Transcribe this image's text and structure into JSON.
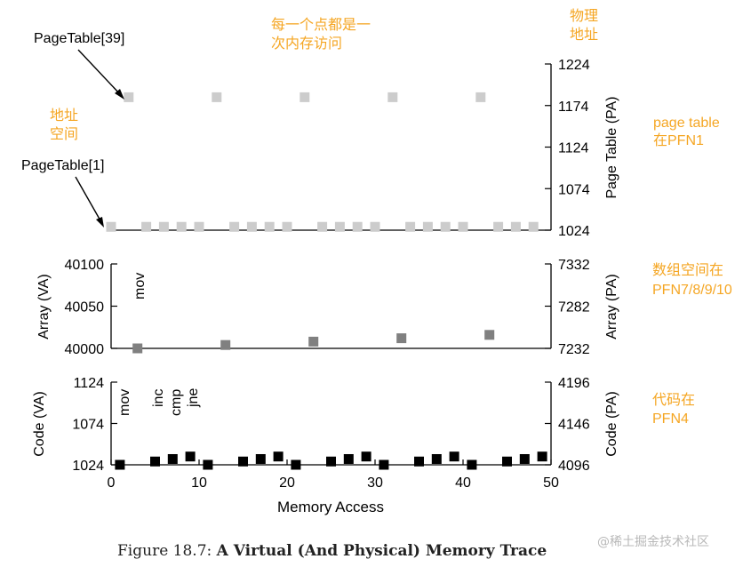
{
  "chart_data": [
    {
      "type": "scatter",
      "name": "page-table-panel",
      "xlim": [
        0,
        50
      ],
      "right_axis": {
        "label": "Page Table (PA)",
        "ylim": [
          1024,
          1224
        ],
        "ticks": [
          "1224",
          "1174",
          "1124",
          "1074",
          "1024"
        ]
      },
      "color": "#cccccc",
      "points": [
        {
          "x": 2,
          "y": 1184
        },
        {
          "x": 12,
          "y": 1184
        },
        {
          "x": 22,
          "y": 1184
        },
        {
          "x": 32,
          "y": 1184
        },
        {
          "x": 42,
          "y": 1184
        },
        {
          "x": 0,
          "y": 1028
        },
        {
          "x": 4,
          "y": 1028
        },
        {
          "x": 6,
          "y": 1028
        },
        {
          "x": 8,
          "y": 1028
        },
        {
          "x": 10,
          "y": 1028
        },
        {
          "x": 14,
          "y": 1028
        },
        {
          "x": 16,
          "y": 1028
        },
        {
          "x": 18,
          "y": 1028
        },
        {
          "x": 20,
          "y": 1028
        },
        {
          "x": 24,
          "y": 1028
        },
        {
          "x": 26,
          "y": 1028
        },
        {
          "x": 28,
          "y": 1028
        },
        {
          "x": 30,
          "y": 1028
        },
        {
          "x": 34,
          "y": 1028
        },
        {
          "x": 36,
          "y": 1028
        },
        {
          "x": 38,
          "y": 1028
        },
        {
          "x": 40,
          "y": 1028
        },
        {
          "x": 44,
          "y": 1028
        },
        {
          "x": 46,
          "y": 1028
        },
        {
          "x": 48,
          "y": 1028
        }
      ],
      "annotations": [
        "PageTable[39]",
        "PageTable[1]"
      ]
    },
    {
      "type": "scatter",
      "name": "array-panel",
      "xlim": [
        0,
        50
      ],
      "left_axis": {
        "label": "Array (VA)",
        "ylim": [
          40000,
          40100
        ],
        "ticks": [
          "40100",
          "40050",
          "40000"
        ]
      },
      "right_axis": {
        "label": "Array (PA)",
        "ylim": [
          7232,
          7332
        ],
        "ticks": [
          "7332",
          "7282",
          "7232"
        ]
      },
      "color": "#808080",
      "points": [
        {
          "x": 3,
          "y": 40000
        },
        {
          "x": 13,
          "y": 40004
        },
        {
          "x": 23,
          "y": 40008
        },
        {
          "x": 33,
          "y": 40012
        },
        {
          "x": 43,
          "y": 40016
        }
      ],
      "instruction_label": "mov"
    },
    {
      "type": "scatter",
      "name": "code-panel",
      "xlim": [
        0,
        50
      ],
      "xlabel": "Memory Access",
      "xticks": [
        "0",
        "10",
        "20",
        "30",
        "40",
        "50"
      ],
      "left_axis": {
        "label": "Code (VA)",
        "ylim": [
          1024,
          1124
        ],
        "ticks": [
          "1124",
          "1074",
          "1024"
        ]
      },
      "right_axis": {
        "label": "Code (PA)",
        "ylim": [
          4096,
          4196
        ],
        "ticks": [
          "4196",
          "4146",
          "4096"
        ]
      },
      "color": "#000000",
      "points": [
        {
          "x": 1,
          "y": 1024
        },
        {
          "x": 5,
          "y": 1028
        },
        {
          "x": 7,
          "y": 1031
        },
        {
          "x": 9,
          "y": 1034
        },
        {
          "x": 11,
          "y": 1024
        },
        {
          "x": 15,
          "y": 1028
        },
        {
          "x": 17,
          "y": 1031
        },
        {
          "x": 19,
          "y": 1034
        },
        {
          "x": 21,
          "y": 1024
        },
        {
          "x": 25,
          "y": 1028
        },
        {
          "x": 27,
          "y": 1031
        },
        {
          "x": 29,
          "y": 1034
        },
        {
          "x": 31,
          "y": 1024
        },
        {
          "x": 35,
          "y": 1028
        },
        {
          "x": 37,
          "y": 1031
        },
        {
          "x": 39,
          "y": 1034
        },
        {
          "x": 41,
          "y": 1024
        },
        {
          "x": 45,
          "y": 1028
        },
        {
          "x": 47,
          "y": 1031
        },
        {
          "x": 49,
          "y": 1034
        }
      ],
      "instruction_labels": [
        "mov",
        "inc",
        "cmp",
        "jne"
      ]
    }
  ],
  "annotations_cn": {
    "each_point": [
      "每一个点都是一",
      "次内存访问"
    ],
    "physical_addr": [
      "物理",
      "地址"
    ],
    "addr_space": [
      "地址",
      "空间"
    ],
    "page_table_pfn": [
      "page table",
      "在PFN1"
    ],
    "array_pfn": [
      "数组空间在",
      "PFN7/8/9/10"
    ],
    "code_pfn": [
      "代码在",
      "PFN4"
    ]
  },
  "accent_color": "#f5a623",
  "caption": {
    "prefix": "Figure 18.7: ",
    "title": "A Virtual (And Physical) Memory Trace"
  },
  "watermark": "@稀土掘金技术社区"
}
